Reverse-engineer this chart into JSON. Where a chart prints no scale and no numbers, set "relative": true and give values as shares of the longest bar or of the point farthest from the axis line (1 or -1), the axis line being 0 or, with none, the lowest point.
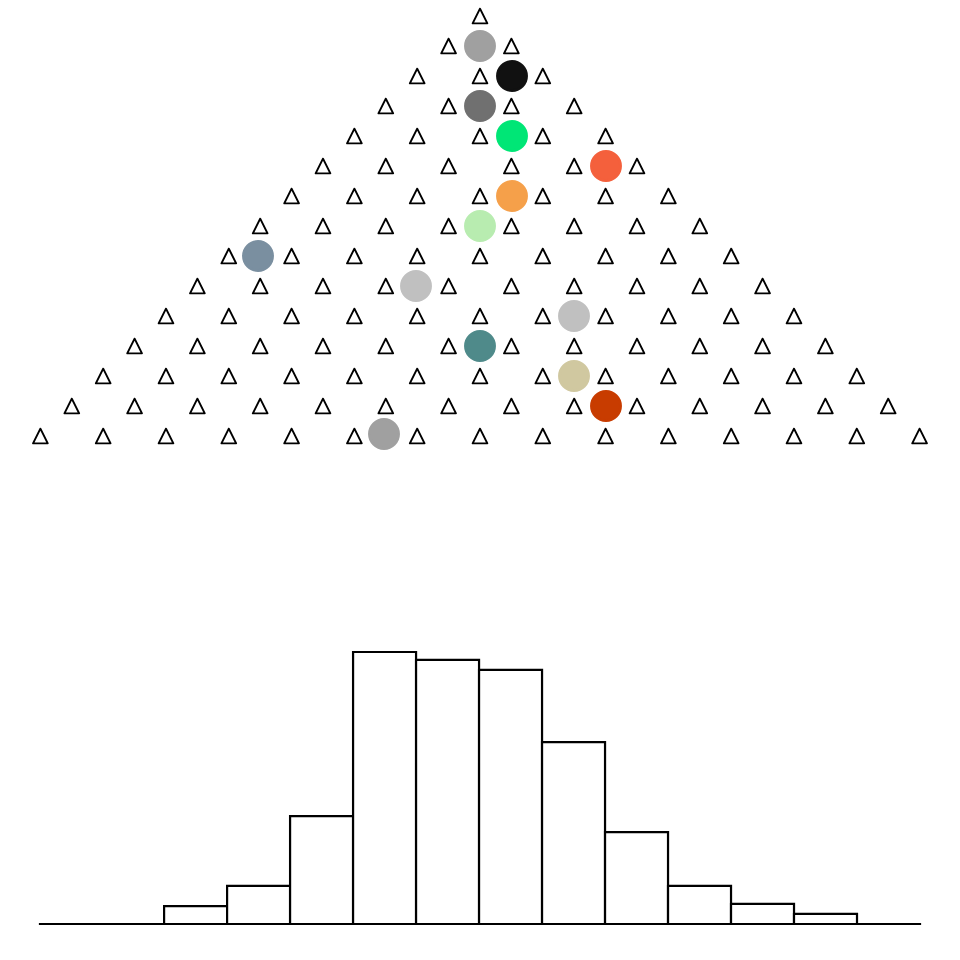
{
  "chart_data": {
    "type": "bar",
    "relative": true,
    "categories": [
      null,
      null,
      null,
      null,
      null,
      null,
      null,
      null,
      null,
      null,
      null
    ],
    "values": [
      0.066,
      0.14,
      0.397,
      1,
      0.971,
      0.934,
      0.669,
      0.338,
      0.14,
      0.074,
      0.037
    ],
    "color": "#ffffff"
  }
}
